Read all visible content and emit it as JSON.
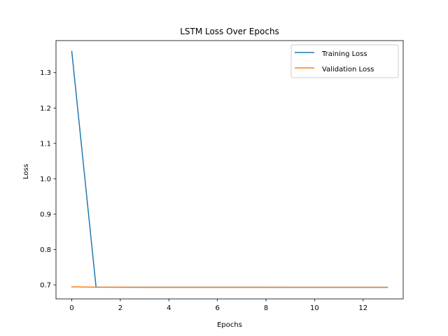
{
  "chart_data": {
    "type": "line",
    "title": "LSTM Loss Over Epochs",
    "xlabel": "Epochs",
    "ylabel": "Loss",
    "xlim": [
      -0.65,
      13.65
    ],
    "ylim": [
      0.6605,
      1.3905
    ],
    "xticks": [
      0,
      2,
      4,
      6,
      8,
      10,
      12
    ],
    "xtick_labels": [
      "0",
      "2",
      "4",
      "6",
      "8",
      "10",
      "12"
    ],
    "yticks": [
      0.7,
      0.8,
      0.9,
      1.0,
      1.1,
      1.2,
      1.3
    ],
    "ytick_labels": [
      "0.7",
      "0.8",
      "0.9",
      "1.0",
      "1.1",
      "1.2",
      "1.3"
    ],
    "grid": false,
    "legend_position": "top-right",
    "x": [
      0,
      1,
      2,
      3,
      4,
      5,
      6,
      7,
      8,
      9,
      10,
      11,
      12,
      13
    ],
    "series": [
      {
        "name": "Training Loss",
        "color": "#1f77b4",
        "values": [
          1.36,
          0.694,
          0.6935,
          0.6934,
          0.6934,
          0.6933,
          0.6933,
          0.6933,
          0.6933,
          0.6932,
          0.6932,
          0.6932,
          0.6932,
          0.6932
        ]
      },
      {
        "name": "Validation Loss",
        "color": "#ff7f0e",
        "values": [
          0.6945,
          0.6935,
          0.6933,
          0.6932,
          0.6932,
          0.6932,
          0.6932,
          0.6932,
          0.6932,
          0.6932,
          0.6932,
          0.6932,
          0.6932,
          0.6931
        ]
      }
    ]
  }
}
